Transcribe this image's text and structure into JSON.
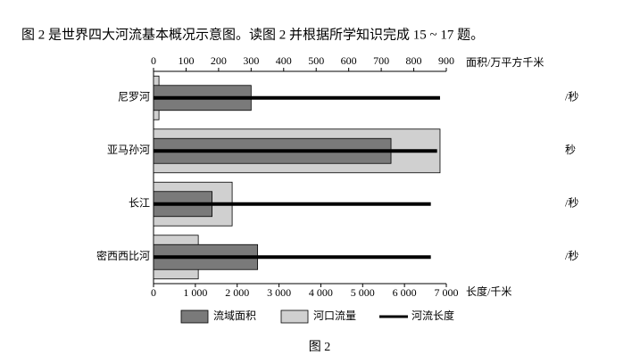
{
  "heading": "图 2 是世界四大河流基本概况示意图。读图 2 并根据所学知识完成 15 ~ 17 题。",
  "caption": "图 2",
  "chart_data": {
    "type": "bar",
    "orientation": "horizontal",
    "categories": [
      "尼罗河",
      "亚马孙河",
      "长江",
      "密西西比河"
    ],
    "series": [
      {
        "name": "流域面积",
        "color": "#7a7a7a",
        "axis": "x2",
        "values": [
          300,
          730,
          180,
          320
        ]
      },
      {
        "name": "河口流量",
        "color": "#d0d0d0",
        "values": [
          130,
          6850,
          1880,
          1070
        ]
      },
      {
        "name": "河流长度",
        "color": "#000000",
        "mark": "line",
        "values": [
          6850,
          6780,
          6630,
          6630
        ]
      }
    ],
    "xlim": [
      0,
      7000
    ],
    "xticks": [
      0,
      {
        "value": 1000,
        "label": "1 000"
      },
      {
        "value": 2000,
        "label": "2 000"
      },
      {
        "value": 3000,
        "label": "3 000"
      },
      {
        "value": 4000,
        "label": "4 000"
      },
      {
        "value": 5000,
        "label": "5 000"
      },
      {
        "value": 6000,
        "label": "6 000"
      },
      {
        "value": 7000,
        "label": "7 000"
      }
    ],
    "xlabel": "长度/千米",
    "x2lim": [
      0,
      900
    ],
    "x2ticks": [
      0,
      100,
      200,
      300,
      400,
      500,
      600,
      700,
      800,
      900
    ],
    "x2label": "面积/万平方千米",
    "side_labels": [
      "/秒",
      "秒",
      "/秒",
      "/秒"
    ]
  }
}
